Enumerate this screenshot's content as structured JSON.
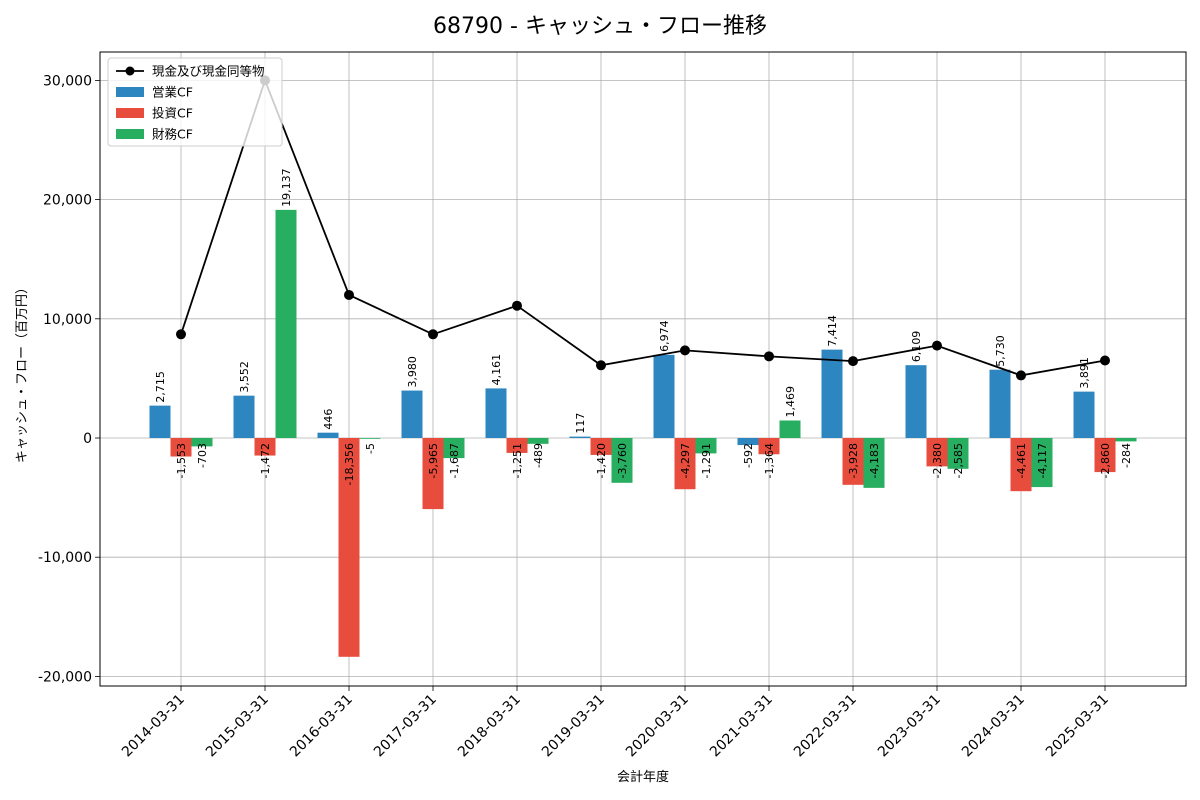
{
  "chart_data": {
    "type": "bar",
    "title": "68790 - キャッシュ・フロー推移",
    "xlabel": "会計年度",
    "ylabel": "キャッシュ・フロー（百万円）",
    "ylim": [
      -21000,
      32000
    ],
    "yticks": [
      -20000,
      -10000,
      0,
      10000,
      20000,
      30000
    ],
    "ytick_labels": [
      "-20,000",
      "-10,000",
      "0",
      "10,000",
      "20,000",
      "30,000"
    ],
    "grid": true,
    "legend_position": "top-left",
    "categories": [
      "2014-03-31",
      "2015-03-31",
      "2016-03-31",
      "2017-03-31",
      "2018-03-31",
      "2019-03-31",
      "2020-03-31",
      "2021-03-31",
      "2022-03-31",
      "2023-03-31",
      "2024-03-31",
      "2025-03-31"
    ],
    "series": [
      {
        "name": "営業CF",
        "kind": "bar",
        "color": "#2e86c1",
        "values": [
          2715,
          3552,
          446,
          3980,
          4161,
          117,
          6974,
          -592,
          7414,
          6109,
          5730,
          3891
        ],
        "labels": [
          "2,715",
          "3,552",
          "446",
          "3,980",
          "4,161",
          "117",
          "6,974",
          "-592",
          "7,414",
          "6,109",
          "5,730",
          "3,891"
        ]
      },
      {
        "name": "投資CF",
        "kind": "bar",
        "color": "#e74c3c",
        "values": [
          -1553,
          -1472,
          -18356,
          -5965,
          -1251,
          -1420,
          -4297,
          -1364,
          -3928,
          -2380,
          -4461,
          -2860
        ],
        "labels": [
          "-1,553",
          "-1,472",
          "-18,356",
          "-5,965",
          "-1,251",
          "-1,420",
          "-4,297",
          "-1,364",
          "-3,928",
          "-2,380",
          "-4,461",
          "-2,860"
        ]
      },
      {
        "name": "財務CF",
        "kind": "bar",
        "color": "#27ae60",
        "values": [
          -703,
          19137,
          -5,
          -1687,
          -489,
          -3760,
          -1291,
          1469,
          -4183,
          -2585,
          -4117,
          -284
        ],
        "labels": [
          "-703",
          "19,137",
          "-5",
          "-1,687",
          "-489",
          "-3,760",
          "-1,291",
          "1,469",
          "-4,183",
          "-2,585",
          "-4,117",
          "-284"
        ]
      },
      {
        "name": "現金及び現金同等物",
        "kind": "line",
        "color": "#000000",
        "values": [
          8700,
          30000,
          12000,
          8700,
          11100,
          6100,
          7350,
          6850,
          6450,
          7750,
          5250,
          6500
        ]
      }
    ]
  }
}
